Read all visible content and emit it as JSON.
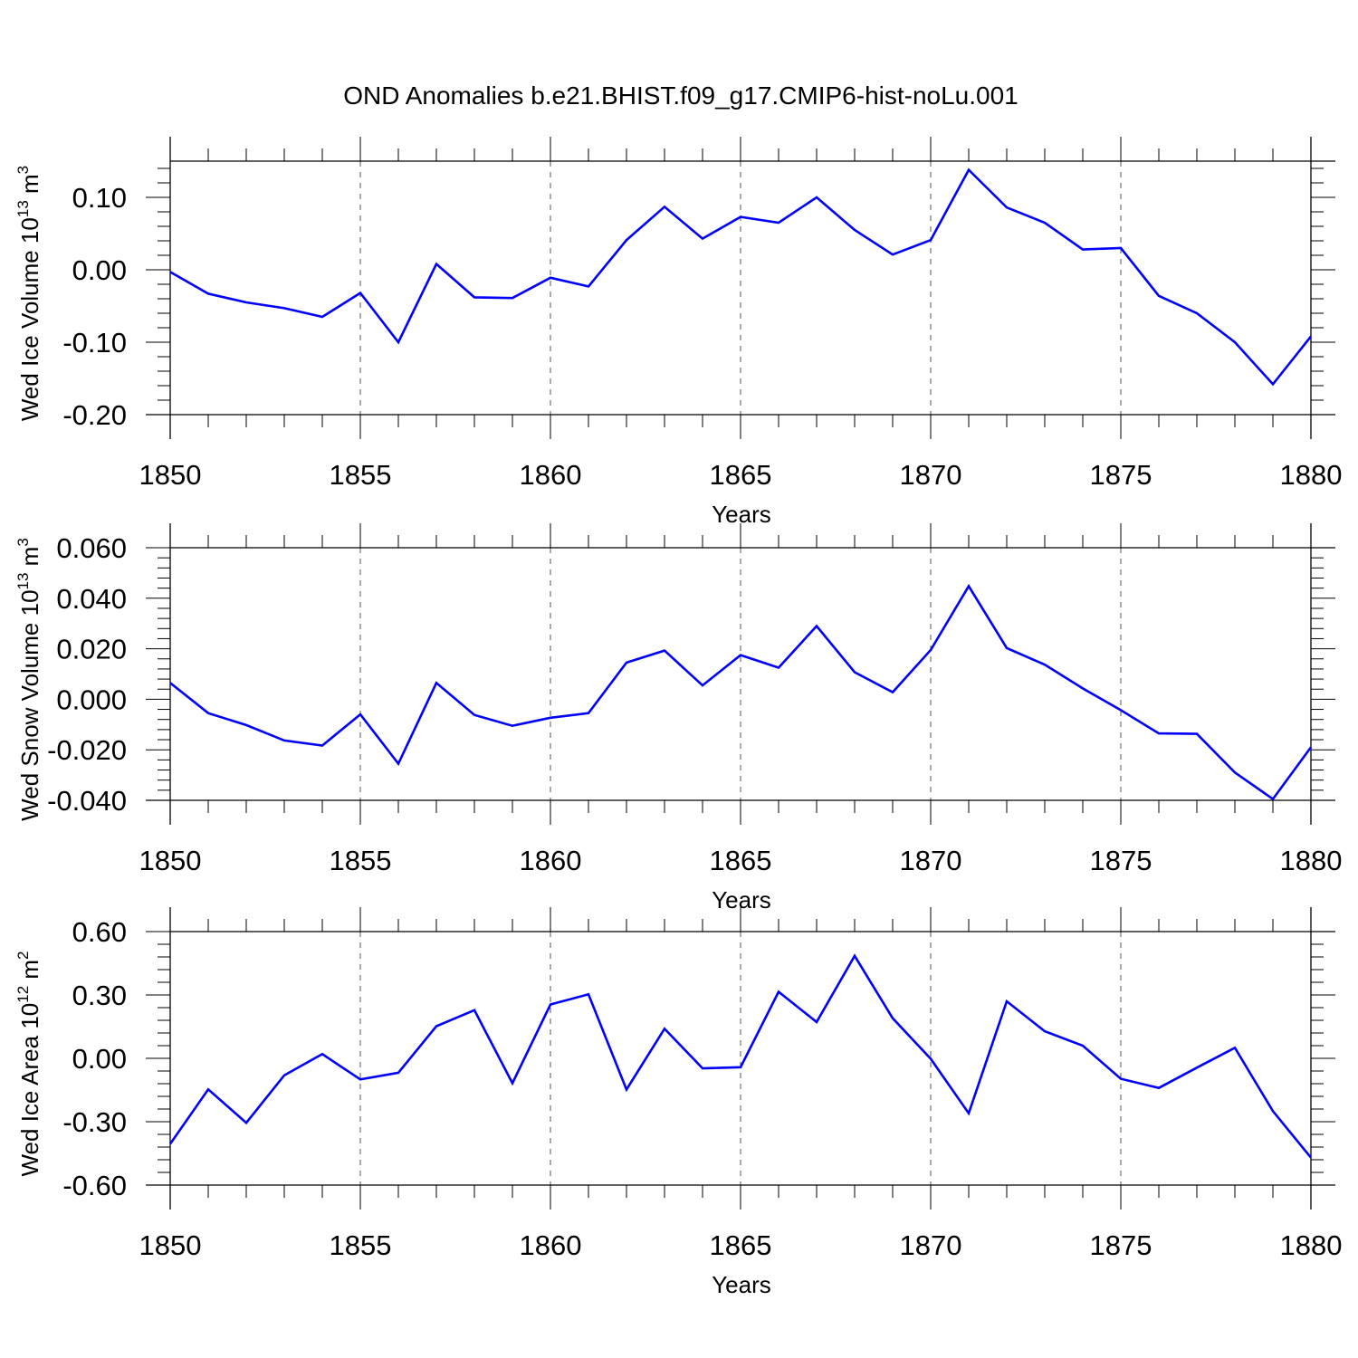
{
  "title": "OND Anomalies b.e21.BHIST.f09_g17.CMIP6-hist-noLu.001",
  "colors": {
    "line": "#0000ff",
    "axis": "#000000",
    "grid": "#555555"
  },
  "chart_data": [
    {
      "type": "line",
      "ylabel": {
        "text": "Wed Ice Volume 10",
        "sup1": "13",
        "mid": " m",
        "sup2": "3"
      },
      "xlabel": "Years",
      "xlim": [
        1850,
        1880
      ],
      "ylim": [
        -0.2,
        0.15
      ],
      "yticks": [
        -0.2,
        -0.1,
        0.0,
        0.1
      ],
      "ytick_labels": [
        "-0.20",
        "-0.10",
        "0.00",
        "0.10"
      ],
      "xticks": [
        1850,
        1855,
        1860,
        1865,
        1870,
        1875,
        1880
      ],
      "xtick_labels": [
        "1850",
        "1855",
        "1860",
        "1865",
        "1870",
        "1875",
        "1880"
      ],
      "grid": "vertical dashed at major x ticks",
      "series": [
        {
          "x": [
            1850,
            1851,
            1852,
            1853,
            1854,
            1855,
            1856,
            1857,
            1858,
            1859,
            1860,
            1861,
            1862,
            1863,
            1864,
            1865,
            1866,
            1867,
            1868,
            1869,
            1870,
            1871,
            1872,
            1873,
            1874,
            1875,
            1876,
            1877,
            1878,
            1879,
            1880
          ],
          "values": [
            -0.003,
            -0.033,
            -0.045,
            -0.053,
            -0.065,
            -0.032,
            -0.1,
            0.008,
            -0.038,
            -0.039,
            -0.011,
            -0.023,
            0.041,
            0.087,
            0.043,
            0.073,
            0.065,
            0.1,
            0.055,
            0.021,
            0.041,
            0.138,
            0.086,
            0.065,
            0.028,
            0.03,
            -0.036,
            -0.06,
            -0.1,
            -0.158,
            -0.092
          ]
        }
      ]
    },
    {
      "type": "line",
      "ylabel": {
        "text": "Wed Snow Volume 10",
        "sup1": "13",
        "mid": " m",
        "sup2": "3"
      },
      "xlabel": "Years",
      "xlim": [
        1850,
        1880
      ],
      "ylim": [
        -0.04,
        0.06
      ],
      "yticks": [
        -0.04,
        -0.02,
        0.0,
        0.02,
        0.04,
        0.06
      ],
      "ytick_labels": [
        "-0.040",
        "-0.020",
        "0.000",
        "0.020",
        "0.040",
        "0.060"
      ],
      "xticks": [
        1850,
        1855,
        1860,
        1865,
        1870,
        1875,
        1880
      ],
      "xtick_labels": [
        "1850",
        "1855",
        "1860",
        "1865",
        "1870",
        "1875",
        "1880"
      ],
      "grid": "vertical dashed at major x ticks",
      "series": [
        {
          "x": [
            1850,
            1851,
            1852,
            1853,
            1854,
            1855,
            1856,
            1857,
            1858,
            1859,
            1860,
            1861,
            1862,
            1863,
            1864,
            1865,
            1866,
            1867,
            1868,
            1869,
            1870,
            1871,
            1872,
            1873,
            1874,
            1875,
            1876,
            1877,
            1878,
            1879,
            1880
          ],
          "values": [
            0.0065,
            -0.0055,
            -0.0102,
            -0.0163,
            -0.0183,
            -0.006,
            -0.0255,
            0.0065,
            -0.0062,
            -0.0105,
            -0.0073,
            -0.0055,
            0.0145,
            0.0193,
            0.0055,
            0.0175,
            0.0125,
            0.029,
            0.0107,
            0.0028,
            0.0195,
            0.0448,
            0.0203,
            0.0137,
            0.0043,
            -0.0043,
            -0.0135,
            -0.0137,
            -0.029,
            -0.0395,
            -0.019
          ]
        }
      ]
    },
    {
      "type": "line",
      "ylabel": {
        "text": "Wed Ice Area 10",
        "sup1": "12",
        "mid": " m",
        "sup2": "2"
      },
      "xlabel": "Years",
      "xlim": [
        1850,
        1880
      ],
      "ylim": [
        -0.6,
        0.6
      ],
      "yticks": [
        -0.6,
        -0.3,
        0.0,
        0.3,
        0.6
      ],
      "ytick_labels": [
        "-0.60",
        "-0.30",
        "0.00",
        "0.30",
        "0.60"
      ],
      "xticks": [
        1850,
        1855,
        1860,
        1865,
        1870,
        1875,
        1880
      ],
      "xtick_labels": [
        "1850",
        "1855",
        "1860",
        "1865",
        "1870",
        "1875",
        "1880"
      ],
      "grid": "vertical dashed at major x ticks",
      "series": [
        {
          "x": [
            1850,
            1851,
            1852,
            1853,
            1854,
            1855,
            1856,
            1857,
            1858,
            1859,
            1860,
            1861,
            1862,
            1863,
            1864,
            1865,
            1866,
            1867,
            1868,
            1869,
            1870,
            1871,
            1872,
            1873,
            1874,
            1875,
            1876,
            1877,
            1878,
            1879,
            1880
          ],
          "values": [
            -0.405,
            -0.147,
            -0.305,
            -0.08,
            0.02,
            -0.1,
            -0.068,
            0.152,
            0.228,
            -0.118,
            0.255,
            0.303,
            -0.148,
            0.14,
            -0.047,
            -0.042,
            0.315,
            0.172,
            0.485,
            0.19,
            -0.002,
            -0.26,
            0.27,
            0.128,
            0.06,
            -0.097,
            -0.14,
            -0.044,
            0.05,
            -0.25,
            -0.47
          ]
        }
      ]
    }
  ]
}
